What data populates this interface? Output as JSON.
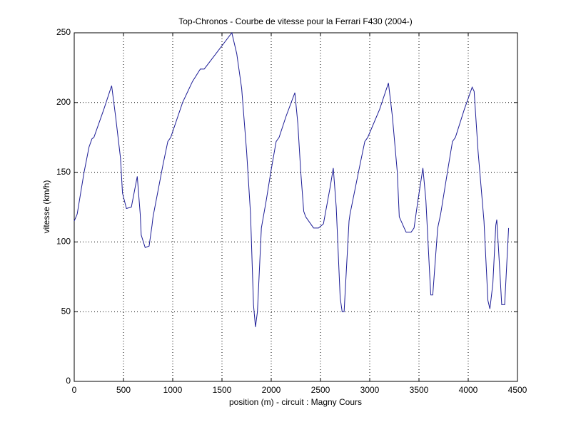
{
  "chart_data": {
    "type": "line",
    "title": "Top-Chronos - Courbe de vitesse pour la Ferrari F430 (2004-)",
    "xlabel": "position (m) - circuit : Magny Cours",
    "ylabel": "vitesse (km/h)",
    "x": [
      0,
      30,
      100,
      150,
      180,
      200,
      300,
      370,
      380,
      420,
      470,
      490,
      530,
      580,
      640,
      670,
      680,
      720,
      760,
      790,
      800,
      900,
      950,
      980,
      1100,
      1200,
      1280,
      1320,
      1600,
      1650,
      1700,
      1750,
      1790,
      1820,
      1840,
      1860,
      1900,
      1950,
      2000,
      2050,
      2080,
      2150,
      2240,
      2270,
      2300,
      2330,
      2350,
      2430,
      2480,
      2530,
      2600,
      2630,
      2660,
      2700,
      2720,
      2740,
      2790,
      2800,
      2900,
      2950,
      2980,
      3100,
      3190,
      3230,
      3280,
      3300,
      3350,
      3370,
      3420,
      3450,
      3490,
      3540,
      3570,
      3610,
      3620,
      3640,
      3690,
      3720,
      3800,
      3840,
      3870,
      3960,
      4040,
      4060,
      4100,
      4160,
      4200,
      4220,
      4250,
      4280,
      4290,
      4320,
      4340,
      4370,
      4410
    ],
    "series": [
      {
        "name": "vitesse",
        "color": "#1c1c96",
        "values": [
          115,
          120,
          150,
          168,
          174,
          175,
          195,
          210,
          212,
          190,
          160,
          135,
          124,
          125,
          147,
          120,
          105,
          96,
          97,
          112,
          118,
          155,
          172,
          175,
          200,
          215,
          224,
          224,
          250,
          235,
          210,
          165,
          120,
          55,
          39,
          50,
          110,
          130,
          152,
          172,
          175,
          190,
          207,
          185,
          150,
          122,
          118,
          110,
          110,
          113,
          140,
          153,
          125,
          60,
          50,
          50,
          115,
          120,
          155,
          172,
          175,
          195,
          214,
          190,
          150,
          118,
          110,
          107,
          107,
          110,
          130,
          153,
          130,
          75,
          62,
          62,
          110,
          120,
          155,
          172,
          175,
          195,
          211,
          208,
          165,
          115,
          58,
          52,
          70,
          112,
          116,
          80,
          55,
          55,
          110
        ]
      }
    ],
    "xlim": [
      0,
      4500
    ],
    "xticks": [
      0,
      500,
      1000,
      1500,
      2000,
      2500,
      3000,
      3500,
      4000,
      4500
    ],
    "ylim": [
      0,
      250
    ],
    "yticks": [
      0,
      50,
      100,
      150,
      200,
      250
    ],
    "grid": true
  }
}
